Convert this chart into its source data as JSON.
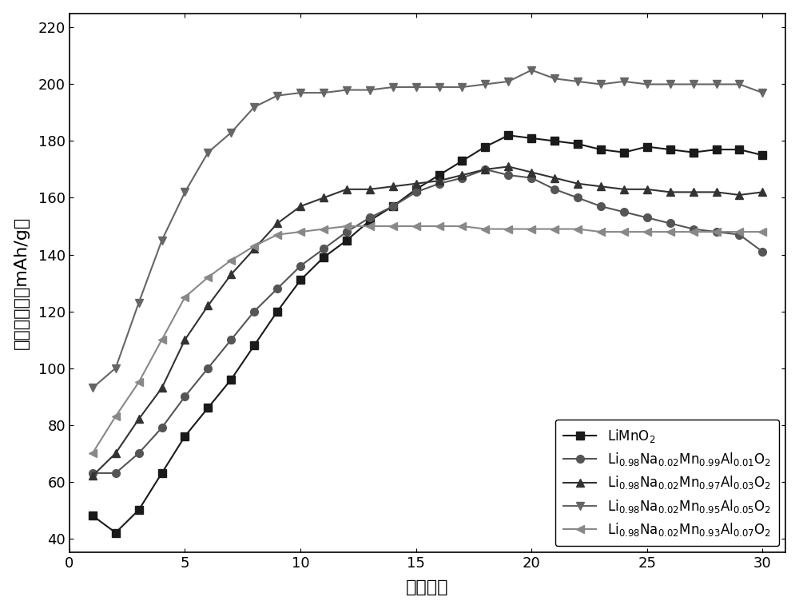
{
  "title": "",
  "xlabel": "循环次数",
  "ylabel": "放电比容量（mAh/g）",
  "xlim": [
    0,
    31
  ],
  "ylim": [
    35,
    225
  ],
  "xticks": [
    0,
    5,
    10,
    15,
    20,
    25,
    30
  ],
  "yticks": [
    40,
    60,
    80,
    100,
    120,
    140,
    160,
    180,
    200,
    220
  ],
  "series": [
    {
      "label_main": "LiMnO",
      "label_sub": "2",
      "label_mathtext": "LiMnO$_2$",
      "color": "#1a1a1a",
      "marker": "s",
      "x": [
        1,
        2,
        3,
        4,
        5,
        6,
        7,
        8,
        9,
        10,
        11,
        12,
        13,
        14,
        15,
        16,
        17,
        18,
        19,
        20,
        21,
        22,
        23,
        24,
        25,
        26,
        27,
        28,
        29,
        30
      ],
      "y": [
        48,
        42,
        50,
        63,
        76,
        86,
        96,
        108,
        120,
        131,
        139,
        145,
        152,
        157,
        163,
        168,
        173,
        178,
        182,
        181,
        180,
        179,
        177,
        176,
        178,
        177,
        176,
        177,
        177,
        175
      ]
    },
    {
      "label_mathtext": "Li$_{0.98}$Na$_{0.02}$Mn$_{0.99}$Al$_{0.01}$O$_2$",
      "color": "#555555",
      "marker": "o",
      "x": [
        1,
        2,
        3,
        4,
        5,
        6,
        7,
        8,
        9,
        10,
        11,
        12,
        13,
        14,
        15,
        16,
        17,
        18,
        19,
        20,
        21,
        22,
        23,
        24,
        25,
        26,
        27,
        28,
        29,
        30
      ],
      "y": [
        63,
        63,
        70,
        79,
        90,
        100,
        110,
        120,
        128,
        136,
        142,
        148,
        153,
        157,
        162,
        165,
        167,
        170,
        168,
        167,
        163,
        160,
        157,
        155,
        153,
        151,
        149,
        148,
        147,
        141
      ]
    },
    {
      "label_mathtext": "Li$_{0.98}$Na$_{0.02}$Mn$_{0.97}$Al$_{0.03}$O$_2$",
      "color": "#333333",
      "marker": "^",
      "x": [
        1,
        2,
        3,
        4,
        5,
        6,
        7,
        8,
        9,
        10,
        11,
        12,
        13,
        14,
        15,
        16,
        17,
        18,
        19,
        20,
        21,
        22,
        23,
        24,
        25,
        26,
        27,
        28,
        29,
        30
      ],
      "y": [
        62,
        70,
        82,
        93,
        110,
        122,
        133,
        142,
        151,
        157,
        160,
        163,
        163,
        164,
        165,
        166,
        168,
        170,
        171,
        169,
        167,
        165,
        164,
        163,
        163,
        162,
        162,
        162,
        161,
        162
      ]
    },
    {
      "label_mathtext": "Li$_{0.98}$Na$_{0.02}$Mn$_{0.95}$Al$_{0.05}$O$_2$",
      "color": "#666666",
      "marker": "v",
      "x": [
        1,
        2,
        3,
        4,
        5,
        6,
        7,
        8,
        9,
        10,
        11,
        12,
        13,
        14,
        15,
        16,
        17,
        18,
        19,
        20,
        21,
        22,
        23,
        24,
        25,
        26,
        27,
        28,
        29,
        30
      ],
      "y": [
        93,
        100,
        123,
        145,
        162,
        176,
        183,
        192,
        196,
        197,
        197,
        198,
        198,
        199,
        199,
        199,
        199,
        200,
        201,
        205,
        202,
        201,
        200,
        201,
        200,
        200,
        200,
        200,
        200,
        197
      ]
    },
    {
      "label_mathtext": "Li$_{0.98}$Na$_{0.02}$Mn$_{0.93}$Al$_{0.07}$O$_2$",
      "color": "#888888",
      "marker": "<",
      "x": [
        1,
        2,
        3,
        4,
        5,
        6,
        7,
        8,
        9,
        10,
        11,
        12,
        13,
        14,
        15,
        16,
        17,
        18,
        19,
        20,
        21,
        22,
        23,
        24,
        25,
        26,
        27,
        28,
        29,
        30
      ],
      "y": [
        70,
        83,
        95,
        110,
        125,
        132,
        138,
        143,
        147,
        148,
        149,
        150,
        150,
        150,
        150,
        150,
        150,
        149,
        149,
        149,
        149,
        149,
        148,
        148,
        148,
        148,
        148,
        148,
        148,
        148
      ]
    }
  ],
  "background_color": "#ffffff",
  "legend_fontsize": 12,
  "axis_label_fontsize": 16,
  "tick_fontsize": 13,
  "markersize": 7,
  "linewidth": 1.5
}
